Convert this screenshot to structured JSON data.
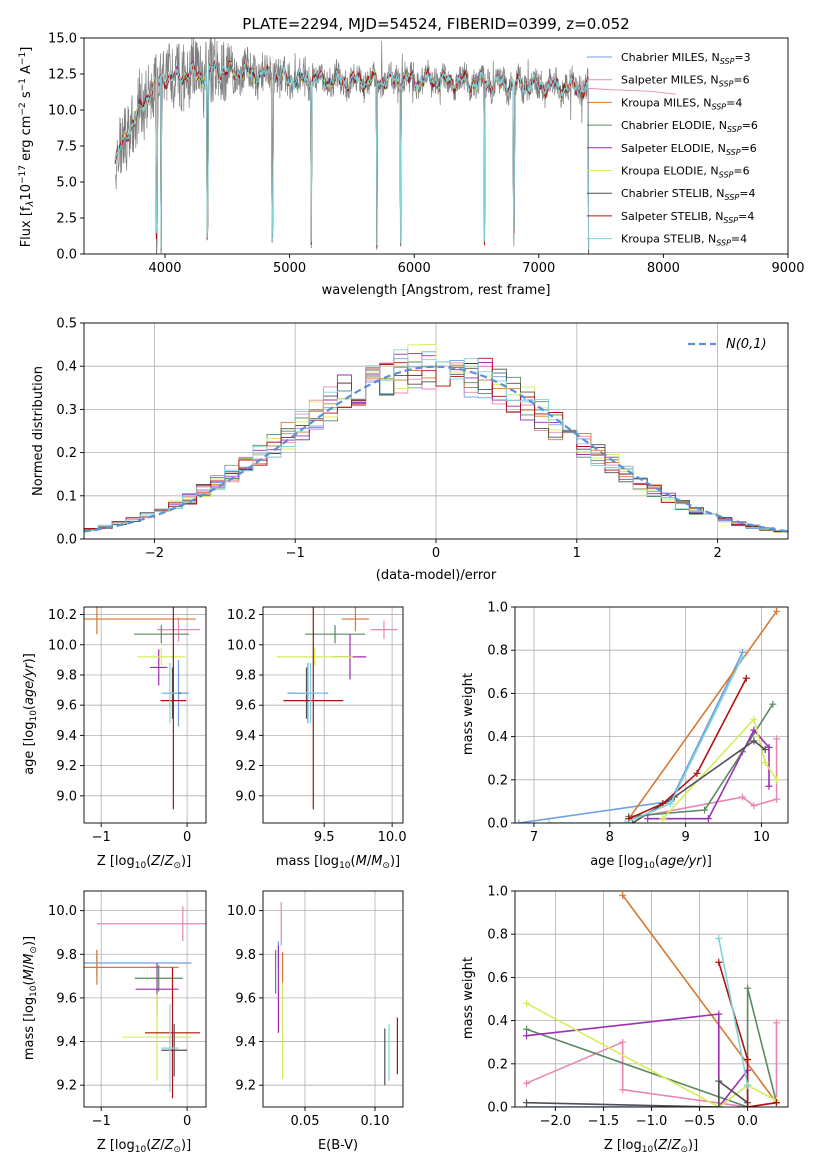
{
  "palette": {
    "chabrier_miles": "#6f9fe0",
    "salpeter_miles": "#e887b5",
    "kroupa_miles": "#d9782f",
    "chabrier_elodie": "#5a8a60",
    "salpeter_elodie": "#9b2fb5",
    "kroupa_elodie": "#d7ec5a",
    "chabrier_stelib": "#505050",
    "salpeter_stelib": "#b01010",
    "kroupa_stelib": "#7fd3da",
    "gauss": "#5b8fd6",
    "spectrum": "#808080"
  },
  "chart_data": [
    {
      "id": "spectrum",
      "type": "line",
      "title": "PLATE=2294, MJD=54524, FIBERID=0399, z=0.052",
      "xlabel": "wavelength [Angstrom, rest frame]",
      "ylabel": "Flux [f_λ 10^-17 erg cm^-2 s^-1 A^-1]",
      "xlim": [
        3350,
        9000
      ],
      "ylim": [
        0,
        15
      ],
      "xticks": [
        "4000",
        "5000",
        "6000",
        "7000",
        "8000",
        "9000"
      ],
      "yticks": [
        "0.0",
        "2.5",
        "5.0",
        "7.5",
        "10.0",
        "12.5",
        "15.0"
      ],
      "grid": false,
      "legend_position": "top-right",
      "series": [
        {
          "name": "Chabrier MILES, N_SSP=3"
        },
        {
          "name": "Salpeter MILES, N_SSP=6"
        },
        {
          "name": "Kroupa MILES, N_SSP=4"
        },
        {
          "name": "Chabrier ELODIE, N_SSP=6"
        },
        {
          "name": "Salpeter ELODIE, N_SSP=6"
        },
        {
          "name": "Kroupa ELODIE, N_SSP=6"
        },
        {
          "name": "Chabrier STELIB, N_SSP=4"
        },
        {
          "name": "Salpeter STELIB, N_SSP=4"
        },
        {
          "name": "Kroupa STELIB, N_SSP=4"
        }
      ],
      "continuum": {
        "x": [
          3600,
          3700,
          3800,
          3900,
          4000,
          4100,
          4200,
          4300,
          4400,
          4500,
          4700,
          5000,
          5200,
          5500,
          6000,
          6500,
          7000,
          7400
        ],
        "y": [
          6.5,
          8.5,
          10.0,
          11.5,
          12.3,
          12.2,
          12.6,
          12.3,
          12.8,
          12.7,
          12.6,
          12.2,
          12.1,
          12.0,
          12.1,
          11.9,
          11.7,
          11.5
        ]
      },
      "absorption_dips_x": [
        3933,
        3969,
        4340,
        4861,
        5175,
        5700,
        5890,
        6563,
        6800,
        7400
      ]
    },
    {
      "id": "residuals",
      "type": "bar",
      "xlabel": "(data-model)/error",
      "ylabel": "Normed distribution",
      "xlim": [
        -2.5,
        2.5
      ],
      "ylim": [
        0,
        0.5
      ],
      "xticks": [
        "−2",
        "−1",
        "0",
        "1",
        "2"
      ],
      "yticks": [
        "0.0",
        "0.1",
        "0.2",
        "0.3",
        "0.4",
        "0.5"
      ],
      "grid": true,
      "legend": "N(0,1)",
      "legend_position": "top-right",
      "bin_edges_from": -2.5,
      "bin_width": 0.1
    },
    {
      "id": "z-age",
      "type": "scatter",
      "xlabel": "Z [log10(Z/Z⊙)]",
      "ylabel": "age [log10(age/yr)]",
      "xlim": [
        -1.2,
        0.22
      ],
      "ylim": [
        8.82,
        10.25
      ],
      "xticks": [
        "−1",
        "0"
      ],
      "yticks": [
        "9.0",
        "9.2",
        "9.4",
        "9.6",
        "9.8",
        "10.0",
        "10.2"
      ],
      "grid": true,
      "points": [
        {
          "x": -0.1,
          "y": 9.68,
          "xerr": 0.12,
          "yerr": 0.22
        },
        {
          "x": -0.1,
          "y": 10.1,
          "xerr": 0.25,
          "yerr": 0.08
        },
        {
          "x": -1.05,
          "y": 10.17,
          "xerr": 1.15,
          "yerr": 0.1
        },
        {
          "x": -0.3,
          "y": 10.07,
          "xerr": 0.32,
          "yerr": 0.06
        },
        {
          "x": -0.33,
          "y": 9.85,
          "xerr": 0.1,
          "yerr": 0.12
        },
        {
          "x": -0.3,
          "y": 9.92,
          "xerr": 0.28,
          "yerr": 0.06
        },
        {
          "x": -0.17,
          "y": 9.68,
          "xerr": 0.1,
          "yerr": 0.17
        },
        {
          "x": -0.16,
          "y": 9.63,
          "xerr": 0.15,
          "yerr": 0.72
        },
        {
          "x": -0.2,
          "y": 9.68,
          "xerr": 0.1,
          "yerr": 0.2
        }
      ]
    },
    {
      "id": "mass-age",
      "type": "scatter",
      "xlabel": "mass [log10(M/M⊙)]",
      "ylabel": "",
      "xlim": [
        9.05,
        10.08
      ],
      "ylim": [
        8.82,
        10.25
      ],
      "xticks": [
        "9.5",
        "10.0"
      ],
      "yticks": [
        "9.0",
        "9.2",
        "9.4",
        "9.6",
        "9.8",
        "10.0",
        "10.2"
      ],
      "grid": true,
      "points": [
        {
          "x": 9.38,
          "y": 9.68,
          "xerr": 0.15,
          "yerr": 0.2
        },
        {
          "x": 9.94,
          "y": 10.1,
          "xerr": 0.1,
          "yerr": 0.06
        },
        {
          "x": 9.73,
          "y": 10.17,
          "xerr": 0.1,
          "yerr": 0.08
        },
        {
          "x": 9.58,
          "y": 10.07,
          "xerr": 0.22,
          "yerr": 0.06
        },
        {
          "x": 9.69,
          "y": 9.92,
          "xerr": 0.12,
          "yerr": 0.15
        },
        {
          "x": 9.43,
          "y": 9.92,
          "xerr": 0.28,
          "yerr": 0.06
        },
        {
          "x": 9.37,
          "y": 9.68,
          "xerr": 0.07,
          "yerr": 0.17
        },
        {
          "x": 9.42,
          "y": 9.63,
          "xerr": 0.22,
          "yerr": 0.72
        },
        {
          "x": 9.4,
          "y": 9.68,
          "xerr": 0.1,
          "yerr": 0.2
        }
      ]
    },
    {
      "id": "age-weight",
      "type": "line",
      "xlabel": "age [log10(age/yr)]",
      "ylabel": "mass weight",
      "xlim": [
        6.75,
        10.35
      ],
      "ylim": [
        0,
        1
      ],
      "xticks": [
        "7",
        "8",
        "9",
        "10"
      ],
      "yticks": [
        "0.0",
        "0.2",
        "0.4",
        "0.6",
        "0.8",
        "1.0"
      ],
      "grid": true,
      "series": [
        {
          "x": [
            6.8,
            8.8,
            9.75
          ],
          "y": [
            0.0,
            0.1,
            0.79
          ]
        },
        {
          "x": [
            8.25,
            9.75,
            9.9,
            10.2,
            10.2
          ],
          "y": [
            0.02,
            0.12,
            0.08,
            0.11,
            0.39
          ]
        },
        {
          "x": [
            8.25,
            10.2
          ],
          "y": [
            0.02,
            0.98
          ]
        },
        {
          "x": [
            8.25,
            9.25,
            9.75,
            10.15
          ],
          "y": [
            0.03,
            0.06,
            0.33,
            0.55
          ]
        },
        {
          "x": [
            8.5,
            9.3,
            9.9,
            10.1,
            10.1
          ],
          "y": [
            0.02,
            0.02,
            0.43,
            0.35,
            0.17
          ]
        },
        {
          "x": [
            8.7,
            9.9,
            10.05,
            10.2
          ],
          "y": [
            0.02,
            0.48,
            0.28,
            0.2
          ]
        },
        {
          "x": [
            8.3,
            8.85,
            9.9,
            10.05
          ],
          "y": [
            0.0,
            0.12,
            0.38,
            0.34
          ]
        },
        {
          "x": [
            8.25,
            8.7,
            9.15,
            9.8
          ],
          "y": [
            0.02,
            0.09,
            0.23,
            0.67
          ]
        },
        {
          "x": [
            7.2,
            8.2,
            8.8,
            9.75
          ],
          "y": [
            0.0,
            0.0,
            0.09,
            0.77
          ]
        }
      ]
    },
    {
      "id": "z-mass",
      "type": "scatter",
      "xlabel": "Z [log10(Z/Z⊙)]",
      "ylabel": "mass [log10(M/M⊙)]",
      "xlim": [
        -1.2,
        0.22
      ],
      "ylim": [
        9.1,
        10.09
      ],
      "xticks": [
        "−1",
        "0"
      ],
      "yticks": [
        "9.2",
        "9.4",
        "9.6",
        "9.8",
        "10.0"
      ],
      "grid": true,
      "points": [
        {
          "x": -1.05,
          "y": 9.76,
          "xerr": 1.1,
          "yerr": 0.06
        },
        {
          "x": -0.05,
          "y": 9.94,
          "xerr": 1.0,
          "yerr": 0.08
        },
        {
          "x": -1.05,
          "y": 9.74,
          "xerr": 0.95,
          "yerr": 0.08
        },
        {
          "x": -0.33,
          "y": 9.69,
          "xerr": 0.28,
          "yerr": 0.06
        },
        {
          "x": -0.35,
          "y": 9.64,
          "xerr": 0.25,
          "yerr": 0.12
        },
        {
          "x": -0.35,
          "y": 9.42,
          "xerr": 0.4,
          "yerr": 0.2
        },
        {
          "x": -0.15,
          "y": 9.36,
          "xerr": 0.15,
          "yerr": 0.12
        },
        {
          "x": -0.17,
          "y": 9.44,
          "xerr": 0.32,
          "yerr": 0.3
        },
        {
          "x": -0.2,
          "y": 9.37,
          "xerr": 0.1,
          "yerr": 0.2
        }
      ]
    },
    {
      "id": "ebv-mass",
      "type": "scatter",
      "xlabel": "E(B-V)",
      "ylabel": "",
      "xlim": [
        0.02,
        0.12
      ],
      "ylim": [
        9.1,
        10.09
      ],
      "xticks": [
        "0.05",
        "0.10"
      ],
      "yticks": [
        "9.2",
        "9.4",
        "9.6",
        "9.8",
        "10.0"
      ],
      "grid": true,
      "points": [
        {
          "x": 0.031,
          "y": 9.8,
          "xerr": 0.0,
          "yerr": 0.06
        },
        {
          "x": 0.033,
          "y": 9.94,
          "xerr": 0.0,
          "yerr": 0.1
        },
        {
          "x": 0.034,
          "y": 9.74,
          "xerr": 0.0,
          "yerr": 0.07
        },
        {
          "x": 0.029,
          "y": 9.72,
          "xerr": 0.0,
          "yerr": 0.1
        },
        {
          "x": 0.031,
          "y": 9.64,
          "xerr": 0.0,
          "yerr": 0.2
        },
        {
          "x": 0.034,
          "y": 9.45,
          "xerr": 0.0,
          "yerr": 0.22
        },
        {
          "x": 0.107,
          "y": 9.33,
          "xerr": 0.0,
          "yerr": 0.13
        },
        {
          "x": 0.116,
          "y": 9.38,
          "xerr": 0.0,
          "yerr": 0.13
        },
        {
          "x": 0.11,
          "y": 9.35,
          "xerr": 0.0,
          "yerr": 0.13
        }
      ]
    },
    {
      "id": "z-weight",
      "type": "line",
      "xlabel": "Z [log10(Z/Z⊙)]",
      "ylabel": "mass weight",
      "xlim": [
        -2.42,
        0.42
      ],
      "ylim": [
        0,
        1
      ],
      "xticks": [
        "−2.0",
        "−1.5",
        "−1.0",
        "−0.5",
        "0.0"
      ],
      "yticks": [
        "0.0",
        "0.2",
        "0.4",
        "0.6",
        "0.8",
        "1.0"
      ],
      "grid": true,
      "series": [
        {
          "x": [
            -2.3,
            -0.3,
            0.0
          ],
          "y": [
            0.0,
            0.0,
            0.1
          ]
        },
        {
          "x": [
            -2.3,
            -1.3,
            -1.3,
            0.0,
            0.3,
            0.3
          ],
          "y": [
            0.11,
            0.3,
            0.08,
            0.0,
            0.02,
            0.39
          ]
        },
        {
          "x": [
            -1.3,
            0.3
          ],
          "y": [
            0.98,
            0.02
          ]
        },
        {
          "x": [
            -2.3,
            0.0,
            0.0,
            0.3
          ],
          "y": [
            0.36,
            0.0,
            0.55,
            0.02
          ]
        },
        {
          "x": [
            -2.3,
            -0.3,
            -0.3,
            0.0
          ],
          "y": [
            0.33,
            0.43,
            0.0,
            0.17
          ]
        },
        {
          "x": [
            -2.3,
            -0.3,
            0.0,
            0.3
          ],
          "y": [
            0.48,
            0.0,
            0.1,
            0.03
          ]
        },
        {
          "x": [
            -2.3,
            -0.3,
            -0.3,
            0.0
          ],
          "y": [
            0.02,
            0.0,
            0.12,
            0.02
          ]
        },
        {
          "x": [
            -0.3,
            0.0,
            0.0,
            0.3
          ],
          "y": [
            0.67,
            0.22,
            0.0,
            0.02
          ]
        },
        {
          "x": [
            -0.3,
            0.0
          ],
          "y": [
            0.78,
            0.1
          ]
        }
      ]
    }
  ]
}
